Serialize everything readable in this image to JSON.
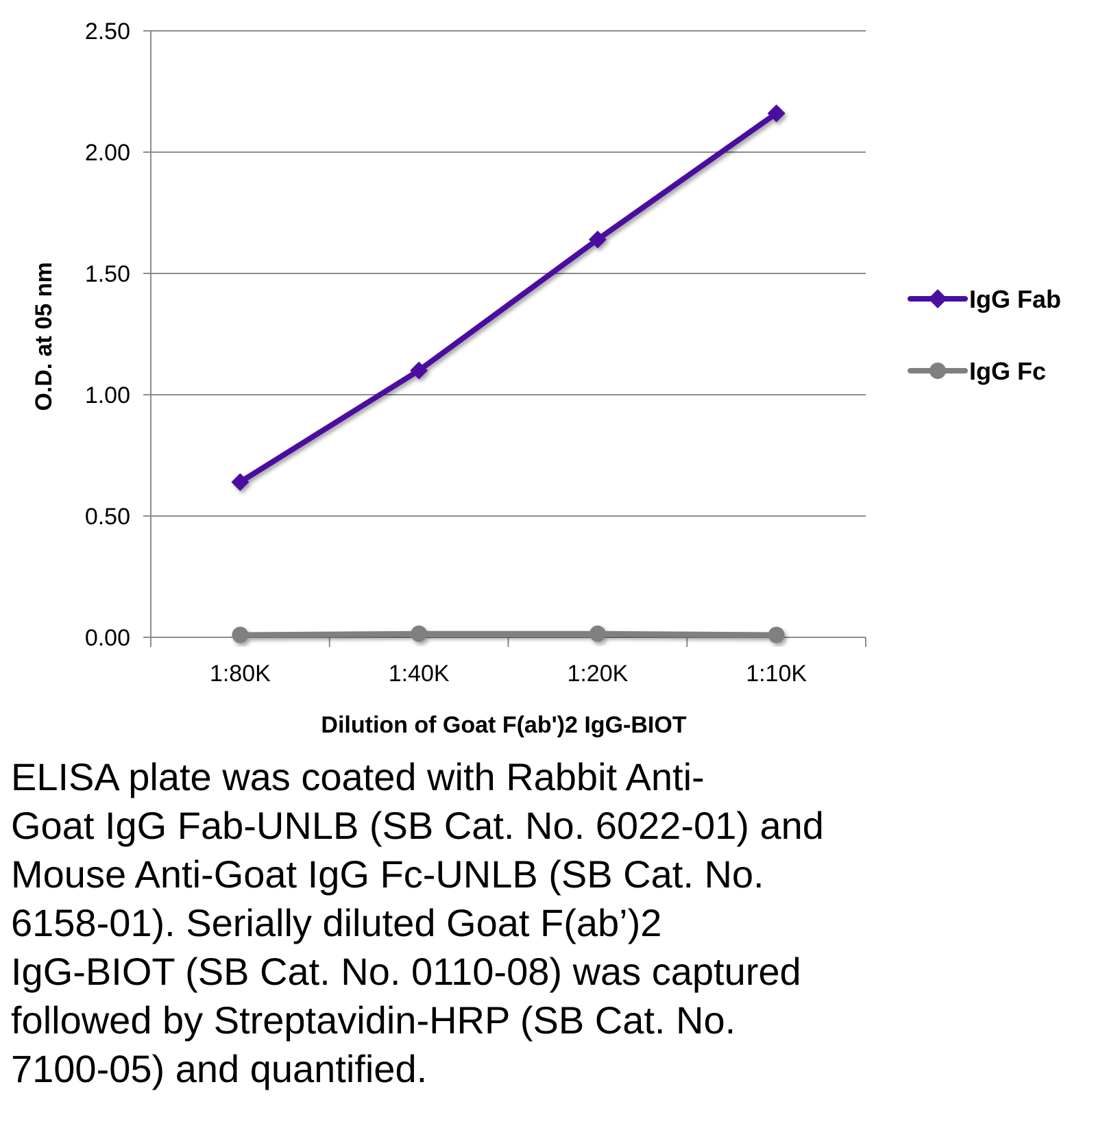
{
  "chart_data": {
    "type": "line",
    "title": "",
    "xlabel": "Dilution of Goat F(ab')2 IgG-BIOT",
    "ylabel": "O.D. at 05 nm",
    "categories": [
      "1:80K",
      "1:40K",
      "1:20K",
      "1:10K"
    ],
    "ylim": [
      0,
      2.5
    ],
    "yticks": [
      "0.00",
      "0.50",
      "1.00",
      "1.50",
      "2.00",
      "2.50"
    ],
    "grid": true,
    "legend_position": "right",
    "series": [
      {
        "name": "IgG Fab",
        "values": [
          0.64,
          1.1,
          1.64,
          2.16
        ],
        "color": "#4B0FA0",
        "marker": "diamond"
      },
      {
        "name": "IgG Fc",
        "values": [
          0.01,
          0.015,
          0.015,
          0.01
        ],
        "color": "#808080",
        "marker": "circle"
      }
    ]
  },
  "caption": {
    "lines": [
      "ELISA plate was coated with Rabbit Anti-",
      "Goat IgG Fab-UNLB (SB Cat. No. 6022-01) and",
      "Mouse Anti-Goat IgG Fc-UNLB (SB Cat. No.",
      "6158-01).  Serially diluted Goat F(ab’)2",
      "IgG-BIOT (SB Cat. No. 0110-08) was captured",
      "followed by Streptavidin-HRP (SB Cat. No.",
      "7100-05) and quantified."
    ]
  }
}
